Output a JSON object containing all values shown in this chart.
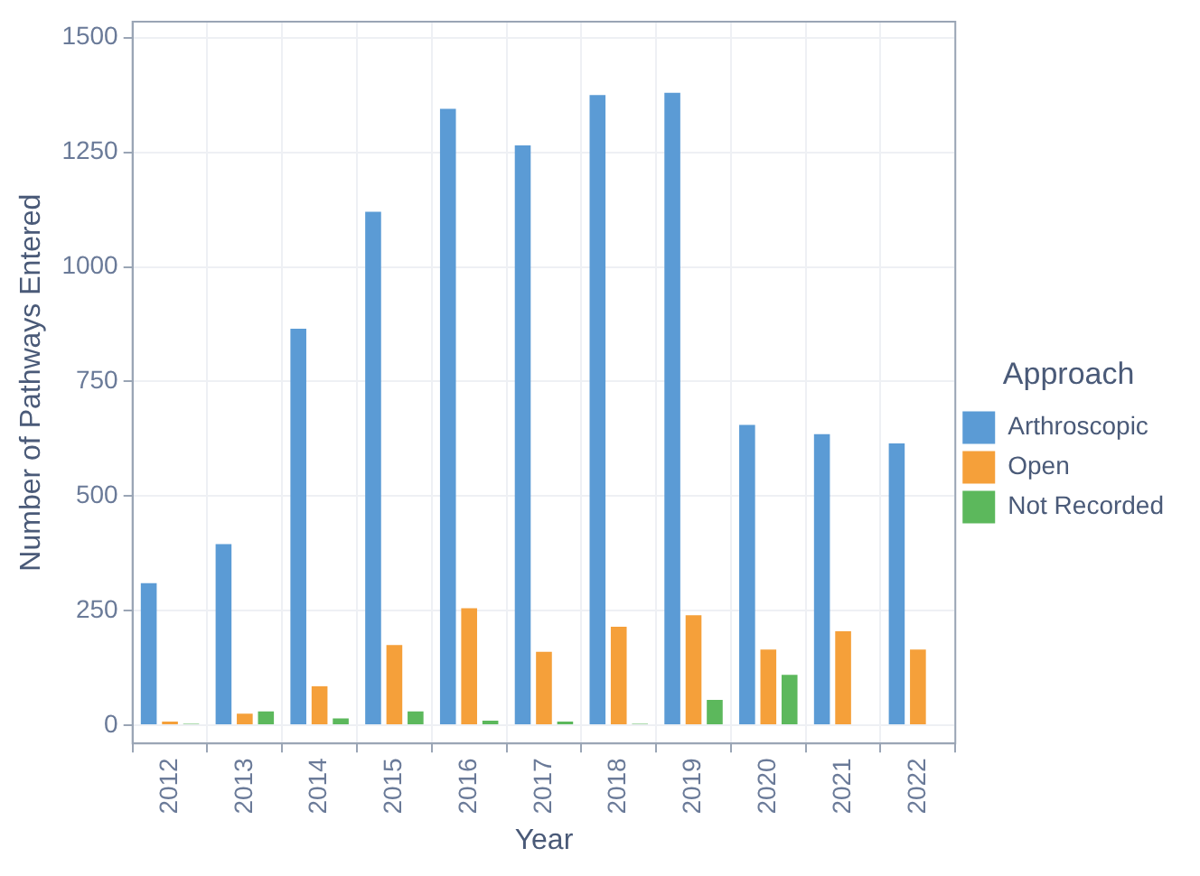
{
  "chart_data": {
    "type": "bar",
    "xlabel": "Year",
    "ylabel": "Number of Pathways Entered",
    "legend_title": "Approach",
    "categories": [
      "2012",
      "2013",
      "2014",
      "2015",
      "2016",
      "2017",
      "2018",
      "2019",
      "2020",
      "2021",
      "2022"
    ],
    "series": [
      {
        "name": "Arthroscopic",
        "color": "#5b9bd5",
        "values": [
          310,
          395,
          865,
          1120,
          1345,
          1265,
          1375,
          1380,
          655,
          635,
          615
        ]
      },
      {
        "name": "Open",
        "color": "#f5a03a",
        "values": [
          8,
          25,
          85,
          175,
          255,
          160,
          215,
          240,
          165,
          205,
          165
        ]
      },
      {
        "name": "Not Recorded",
        "color": "#5cb85c",
        "values": [
          3,
          30,
          15,
          30,
          10,
          8,
          3,
          55,
          110,
          0,
          0
        ]
      }
    ],
    "ylim": [
      -40,
      1535
    ],
    "yticks": [
      0,
      250,
      500,
      750,
      1000,
      1250,
      1500
    ],
    "grid": true,
    "legend": "right"
  }
}
